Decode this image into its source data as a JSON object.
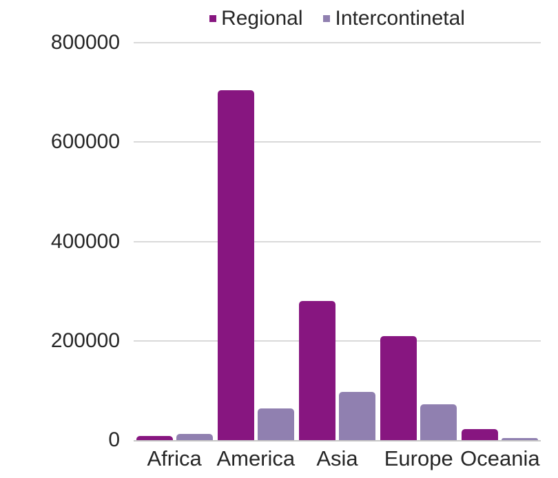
{
  "chart_data": {
    "type": "bar",
    "title": "",
    "xlabel": "",
    "ylabel": "",
    "categories": [
      "Africa",
      "America",
      "Asia",
      "Europe",
      "Oceania"
    ],
    "series": [
      {
        "name": "Regional",
        "color": "#871680",
        "values": [
          9000,
          705000,
          280000,
          210000,
          22000
        ]
      },
      {
        "name": "Intercontinetal",
        "color": "#9080B0",
        "values": [
          13000,
          64000,
          97000,
          72000,
          4000
        ]
      }
    ],
    "ylim": [
      0,
      800000
    ],
    "yticks": [
      0,
      200000,
      400000,
      600000,
      800000
    ],
    "ytick_labels": [
      "0",
      "200000",
      "400000",
      "600000",
      "800000"
    ],
    "grid": true,
    "legend_position": "top-center"
  },
  "colors": {
    "text": "#262626",
    "gridline": "#D9D9D9",
    "axis_line": "#C6C6C6",
    "background": "#FFFFFF"
  }
}
